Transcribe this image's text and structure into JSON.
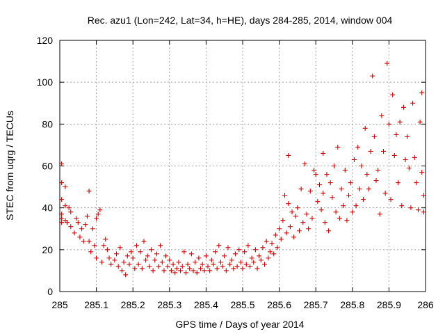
{
  "chart_data": {
    "type": "scatter",
    "title": "Rec. azu1 (Lon=242, Lat=34, h=HE), days 284-285, 2014, window 004",
    "xlabel": "GPS time / Days of year 2014",
    "ylabel": "STEC from uqrg / TECUs",
    "xlim": [
      285,
      286
    ],
    "ylim": [
      0,
      120
    ],
    "xticks": [
      285,
      285.1,
      285.2,
      285.3,
      285.4,
      285.5,
      285.6,
      285.7,
      285.8,
      285.9,
      286
    ],
    "xtick_labels": [
      "285",
      "285.1",
      "285.2",
      "285.3",
      "285.4",
      "285.5",
      "285.6",
      "285.7",
      "285.8",
      "285.9",
      "286"
    ],
    "yticks": [
      0,
      20,
      40,
      60,
      80,
      100,
      120
    ],
    "ytick_labels": [
      "0",
      "20",
      "40",
      "60",
      "80",
      "100",
      "120"
    ],
    "grid": true,
    "marker": "+",
    "color": "#cc0000",
    "series": [
      {
        "points": [
          [
            285.005,
            61
          ],
          [
            285.005,
            52
          ],
          [
            285.005,
            44
          ],
          [
            285.005,
            37
          ],
          [
            285.005,
            35
          ],
          [
            285.005,
            33
          ],
          [
            285.015,
            50
          ],
          [
            285.015,
            41
          ],
          [
            285.015,
            34
          ],
          [
            285.02,
            33
          ],
          [
            285.025,
            40
          ],
          [
            285.03,
            38
          ],
          [
            285.03,
            31
          ],
          [
            285.04,
            28
          ],
          [
            285.045,
            35
          ],
          [
            285.05,
            33
          ],
          [
            285.055,
            26
          ],
          [
            285.06,
            30
          ],
          [
            285.065,
            24
          ],
          [
            285.07,
            32
          ],
          [
            285.075,
            36
          ],
          [
            285.08,
            48
          ],
          [
            285.08,
            24
          ],
          [
            285.085,
            19
          ],
          [
            285.09,
            30
          ],
          [
            285.095,
            22
          ],
          [
            285.1,
            16
          ],
          [
            285.1,
            35
          ],
          [
            285.105,
            37
          ],
          [
            285.11,
            39
          ],
          [
            285.115,
            14
          ],
          [
            285.12,
            22
          ],
          [
            285.125,
            25
          ],
          [
            285.13,
            20
          ],
          [
            285.135,
            16
          ],
          [
            285.14,
            13
          ],
          [
            285.15,
            15
          ],
          [
            285.155,
            18
          ],
          [
            285.16,
            12
          ],
          [
            285.165,
            21
          ],
          [
            285.17,
            10
          ],
          [
            285.175,
            14
          ],
          [
            285.18,
            8
          ],
          [
            285.185,
            17
          ],
          [
            285.19,
            13
          ],
          [
            285.195,
            19
          ],
          [
            285.2,
            16
          ],
          [
            285.205,
            11
          ],
          [
            285.21,
            22
          ],
          [
            285.215,
            13
          ],
          [
            285.22,
            19
          ],
          [
            285.225,
            11
          ],
          [
            285.23,
            24
          ],
          [
            285.235,
            15
          ],
          [
            285.24,
            17
          ],
          [
            285.245,
            12
          ],
          [
            285.25,
            20
          ],
          [
            285.255,
            10
          ],
          [
            285.26,
            15
          ],
          [
            285.265,
            18
          ],
          [
            285.27,
            12
          ],
          [
            285.275,
            22
          ],
          [
            285.28,
            14
          ],
          [
            285.285,
            10
          ],
          [
            285.29,
            17
          ],
          [
            285.295,
            12
          ],
          [
            285.3,
            15
          ],
          [
            285.305,
            10
          ],
          [
            285.31,
            13
          ],
          [
            285.315,
            9
          ],
          [
            285.32,
            11
          ],
          [
            285.325,
            14
          ],
          [
            285.33,
            10
          ],
          [
            285.335,
            12
          ],
          [
            285.34,
            19
          ],
          [
            285.345,
            9
          ],
          [
            285.35,
            13
          ],
          [
            285.355,
            11
          ],
          [
            285.36,
            18
          ],
          [
            285.365,
            10
          ],
          [
            285.37,
            14
          ],
          [
            285.375,
            9
          ],
          [
            285.38,
            16
          ],
          [
            285.385,
            11
          ],
          [
            285.39,
            13
          ],
          [
            285.395,
            10
          ],
          [
            285.4,
            17
          ],
          [
            285.405,
            12
          ],
          [
            285.41,
            10
          ],
          [
            285.415,
            15
          ],
          [
            285.42,
            13
          ],
          [
            285.425,
            19
          ],
          [
            285.43,
            11
          ],
          [
            285.435,
            22
          ],
          [
            285.44,
            14
          ],
          [
            285.445,
            12
          ],
          [
            285.45,
            17
          ],
          [
            285.455,
            10
          ],
          [
            285.46,
            21
          ],
          [
            285.465,
            13
          ],
          [
            285.47,
            15
          ],
          [
            285.475,
            11
          ],
          [
            285.48,
            18
          ],
          [
            285.485,
            12
          ],
          [
            285.49,
            20
          ],
          [
            285.495,
            14
          ],
          [
            285.5,
            11
          ],
          [
            285.505,
            19
          ],
          [
            285.51,
            13
          ],
          [
            285.515,
            22
          ],
          [
            285.52,
            12
          ],
          [
            285.525,
            16
          ],
          [
            285.53,
            14
          ],
          [
            285.535,
            20
          ],
          [
            285.54,
            11
          ],
          [
            285.545,
            17
          ],
          [
            285.55,
            15
          ],
          [
            285.555,
            21
          ],
          [
            285.56,
            13
          ],
          [
            285.565,
            24
          ],
          [
            285.57,
            16
          ],
          [
            285.575,
            19
          ],
          [
            285.58,
            23
          ],
          [
            285.585,
            18
          ],
          [
            285.59,
            27
          ],
          [
            285.595,
            21
          ],
          [
            285.6,
            30
          ],
          [
            285.605,
            25
          ],
          [
            285.61,
            34
          ],
          [
            285.615,
            46
          ],
          [
            285.62,
            28
          ],
          [
            285.625,
            42
          ],
          [
            285.625,
            65
          ],
          [
            285.63,
            31
          ],
          [
            285.635,
            38
          ],
          [
            285.64,
            26
          ],
          [
            285.645,
            36
          ],
          [
            285.65,
            40
          ],
          [
            285.655,
            29
          ],
          [
            285.66,
            49
          ],
          [
            285.665,
            33
          ],
          [
            285.67,
            61
          ],
          [
            285.675,
            37
          ],
          [
            285.68,
            30
          ],
          [
            285.685,
            48
          ],
          [
            285.69,
            35
          ],
          [
            285.695,
            58
          ],
          [
            285.7,
            56
          ],
          [
            285.705,
            43
          ],
          [
            285.71,
            51
          ],
          [
            285.715,
            39
          ],
          [
            285.72,
            66
          ],
          [
            285.72,
            47
          ],
          [
            285.725,
            33
          ],
          [
            285.73,
            56
          ],
          [
            285.735,
            29
          ],
          [
            285.74,
            52
          ],
          [
            285.745,
            45
          ],
          [
            285.75,
            60
          ],
          [
            285.755,
            38
          ],
          [
            285.76,
            69
          ],
          [
            285.765,
            35
          ],
          [
            285.77,
            49
          ],
          [
            285.775,
            41
          ],
          [
            285.78,
            58
          ],
          [
            285.785,
            34
          ],
          [
            285.79,
            46
          ],
          [
            285.795,
            52
          ],
          [
            285.8,
            38
          ],
          [
            285.805,
            63
          ],
          [
            285.81,
            41
          ],
          [
            285.815,
            69
          ],
          [
            285.82,
            49
          ],
          [
            285.825,
            60
          ],
          [
            285.83,
            44
          ],
          [
            285.835,
            78
          ],
          [
            285.84,
            56
          ],
          [
            285.845,
            49
          ],
          [
            285.85,
            67
          ],
          [
            285.855,
            103
          ],
          [
            285.86,
            74
          ],
          [
            285.865,
            53
          ],
          [
            285.87,
            58
          ],
          [
            285.875,
            37
          ],
          [
            285.88,
            84
          ],
          [
            285.885,
            67
          ],
          [
            285.89,
            47
          ],
          [
            285.895,
            109
          ],
          [
            285.9,
            80
          ],
          [
            285.905,
            44
          ],
          [
            285.91,
            94
          ],
          [
            285.915,
            65
          ],
          [
            285.92,
            75
          ],
          [
            285.925,
            52
          ],
          [
            285.93,
            81
          ],
          [
            285.935,
            41
          ],
          [
            285.94,
            88
          ],
          [
            285.945,
            63
          ],
          [
            285.95,
            74
          ],
          [
            285.955,
            59
          ],
          [
            285.96,
            40
          ],
          [
            285.965,
            90
          ],
          [
            285.97,
            64
          ],
          [
            285.975,
            52
          ],
          [
            285.98,
            39
          ],
          [
            285.985,
            81
          ],
          [
            285.99,
            95
          ],
          [
            285.99,
            57
          ],
          [
            285.995,
            46
          ],
          [
            285.995,
            38
          ]
        ]
      }
    ]
  }
}
